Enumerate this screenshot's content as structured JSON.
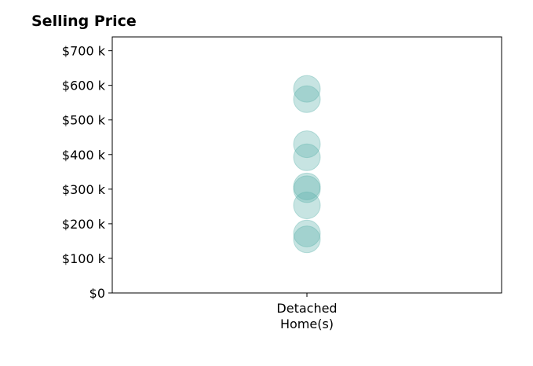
{
  "chart_data": {
    "type": "scatter",
    "title": "Selling Price",
    "xlabel": "",
    "ylabel": "",
    "categories": [
      "Detached\nHome(s)"
    ],
    "series": [
      {
        "category": "Detached\nHome(s)",
        "values": [
          590000,
          560000,
          430000,
          392000,
          308000,
          300000,
          253000,
          172000,
          155000
        ]
      }
    ],
    "yticks": [
      0,
      100000,
      200000,
      300000,
      400000,
      500000,
      600000,
      700000
    ],
    "ytick_labels": [
      "$0",
      "$100 k",
      "$200 k",
      "$300 k",
      "$400 k",
      "$500 k",
      "$600 k",
      "$700 k"
    ],
    "ylim": [
      0,
      740000
    ],
    "grid": false,
    "point_color": "#5fb3ac"
  }
}
